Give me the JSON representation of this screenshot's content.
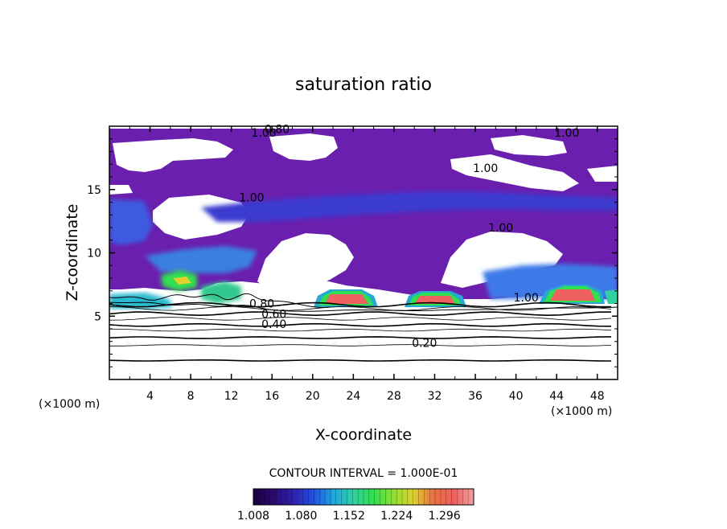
{
  "chart_data": {
    "type": "heatmap",
    "title": "saturation ratio",
    "xlabel": "X-coordinate",
    "ylabel": "Z-coordinate",
    "x_unit": "(×1000 m)",
    "z_unit": "(×1000 m)",
    "xlim": [
      0,
      50
    ],
    "ylim": [
      0,
      20
    ],
    "x_ticks": [
      {
        "value": 4,
        "label": "4"
      },
      {
        "value": 8,
        "label": "8"
      },
      {
        "value": 12,
        "label": "12"
      },
      {
        "value": 16,
        "label": "16"
      },
      {
        "value": 20,
        "label": "20"
      },
      {
        "value": 24,
        "label": "24"
      },
      {
        "value": 28,
        "label": "28"
      },
      {
        "value": 32,
        "label": "32"
      },
      {
        "value": 36,
        "label": "36"
      },
      {
        "value": 40,
        "label": "40"
      },
      {
        "value": 44,
        "label": "44"
      },
      {
        "value": 48,
        "label": "48"
      }
    ],
    "y_ticks": [
      {
        "value": 5,
        "label": "5"
      },
      {
        "value": 10,
        "label": "10"
      },
      {
        "value": 15,
        "label": "15"
      }
    ],
    "contour_interval_text": "CONTOUR INTERVAL = 1.000E-01",
    "colorbar": {
      "min": 1.008,
      "max": 1.34,
      "tick_labels": [
        "1.008",
        "1.080",
        "1.152",
        "1.224",
        "1.296"
      ],
      "tick_values": [
        1.008,
        1.08,
        1.152,
        1.224,
        1.296
      ],
      "stops": [
        "#1a0040",
        "#2a0a70",
        "#3020b0",
        "#2050e0",
        "#20a8e0",
        "#30d0a0",
        "#30e050",
        "#90e030",
        "#e0d030",
        "#e87040",
        "#f06060",
        "#f0a0a0"
      ]
    },
    "contour_labels": [
      {
        "text": "0.80",
        "x": 16.5,
        "z": 19.6
      },
      {
        "text": "1.00",
        "x": 15.2,
        "z": 19.3
      },
      {
        "text": "1.00",
        "x": 45.0,
        "z": 19.3
      },
      {
        "text": "1.00",
        "x": 37.0,
        "z": 16.5
      },
      {
        "text": "1.00",
        "x": 14.0,
        "z": 14.2
      },
      {
        "text": "1.00",
        "x": 38.5,
        "z": 11.8
      },
      {
        "text": "1.00",
        "x": 41.0,
        "z": 6.3
      },
      {
        "text": "0.80",
        "x": 15.0,
        "z": 5.8
      },
      {
        "text": "0.60",
        "x": 16.2,
        "z": 5.0
      },
      {
        "text": "0.40",
        "x": 16.2,
        "z": 4.2
      },
      {
        "text": "0.20",
        "x": 31.0,
        "z": 2.7
      }
    ],
    "regions": [
      {
        "name": "upper-moist-band",
        "value": 1.02,
        "x": [
          0,
          50
        ],
        "z": [
          8.0,
          19.8
        ]
      },
      {
        "name": "jet-band",
        "value": 1.06,
        "x": [
          13,
          50
        ],
        "z": [
          12.2,
          14.6
        ]
      },
      {
        "name": "low-cloud-layer-left",
        "value": 1.12,
        "x": [
          0,
          6
        ],
        "z": [
          6.0,
          6.6
        ]
      },
      {
        "name": "cloud-cell-8km",
        "value": 1.2,
        "x": [
          5,
          9
        ],
        "z": [
          7.0,
          8.3
        ]
      },
      {
        "name": "cloud-cell-22km",
        "value": 1.3,
        "x": [
          20.5,
          26
        ],
        "z": [
          6.0,
          7.2
        ]
      },
      {
        "name": "cloud-cell-32km",
        "value": 1.28,
        "x": [
          29.5,
          35
        ],
        "z": [
          6.0,
          7.1
        ]
      },
      {
        "name": "cloud-cell-45km",
        "value": 1.32,
        "x": [
          42,
          48.5
        ],
        "z": [
          6.1,
          7.4
        ]
      },
      {
        "name": "dry-patch-21km",
        "value": 0.95,
        "x": [
          14,
          24
        ],
        "z": [
          6.4,
          11.0
        ]
      },
      {
        "name": "dry-patch-37km",
        "value": 0.95,
        "x": [
          33,
          42
        ],
        "z": [
          7.0,
          12.0
        ]
      }
    ],
    "lower_contours": [
      {
        "z": 1.5,
        "value": 0.1
      },
      {
        "z": 2.7,
        "value": 0.2
      },
      {
        "z": 3.3,
        "value": 0.3
      },
      {
        "z": 3.9,
        "value": 0.35
      },
      {
        "z": 4.3,
        "value": 0.4
      },
      {
        "z": 4.8,
        "value": 0.5
      },
      {
        "z": 5.2,
        "value": 0.6
      },
      {
        "z": 5.6,
        "value": 0.7
      },
      {
        "z": 5.9,
        "value": 0.8
      }
    ]
  }
}
